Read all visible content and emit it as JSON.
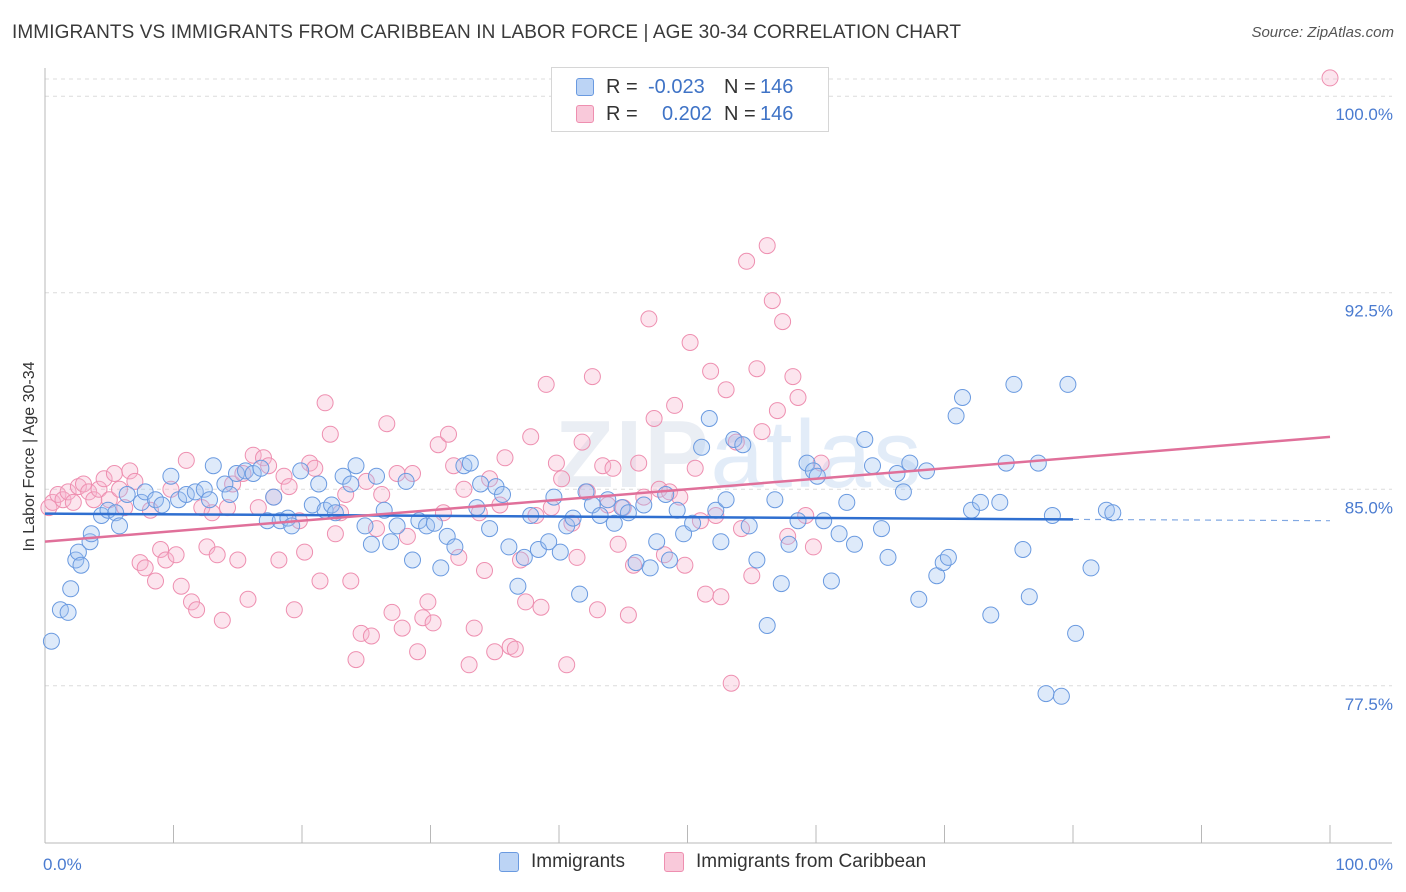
{
  "title": "IMMIGRANTS VS IMMIGRANTS FROM CARIBBEAN IN LABOR FORCE | AGE 30-34 CORRELATION CHART",
  "source": "Source: ZipAtlas.com",
  "watermark": {
    "zip": "ZIP",
    "atlas": "atlas"
  },
  "legend": {
    "rows": [
      {
        "r_label": "R =",
        "r_value": "-0.023",
        "n_label": "N =",
        "n_value": "146"
      },
      {
        "r_label": "R =",
        "r_value": "0.202",
        "n_label": "N =",
        "n_value": "146"
      }
    ]
  },
  "chart_data": {
    "type": "scatter",
    "title": "IMMIGRANTS VS IMMIGRANTS FROM CARIBBEAN IN LABOR FORCE | AGE 30-34 CORRELATION CHART",
    "xlabel": "",
    "ylabel": "In Labor Force | Age 30-34",
    "xlim": [
      0,
      100
    ],
    "ylim": [
      71.5,
      101
    ],
    "x_tick_labels": [
      "0.0%",
      "100.0%"
    ],
    "y_ticks": [
      77.5,
      85.0,
      92.5,
      100.0
    ],
    "y_tick_labels": [
      "77.5%",
      "85.0%",
      "92.5%",
      "100.0%"
    ],
    "grid": true,
    "legend_position": "top-center",
    "colors": {
      "immigrants": "#6a9ae0",
      "caribbean": "#ee8fb0",
      "immigrants_line": "#2f6fd0",
      "caribbean_line": "#e0709a"
    },
    "series": [
      {
        "name": "Immigrants",
        "r": -0.023,
        "n": 146,
        "trend": {
          "x0": 0,
          "y0": 84.07,
          "x1": 80,
          "y1": 83.85,
          "dash_to": 100,
          "dash_y": 83.8
        },
        "points": [
          [
            0.5,
            79.2
          ],
          [
            1.2,
            80.4
          ],
          [
            1.8,
            80.3
          ],
          [
            2,
            81.2
          ],
          [
            2.4,
            82.3
          ],
          [
            2.6,
            82.6
          ],
          [
            2.8,
            82.1
          ],
          [
            3.5,
            83.0
          ],
          [
            3.6,
            83.3
          ],
          [
            4.4,
            84.0
          ],
          [
            4.9,
            84.2
          ],
          [
            5.5,
            84.1
          ],
          [
            5.8,
            83.6
          ],
          [
            6.4,
            84.8
          ],
          [
            7.5,
            84.5
          ],
          [
            7.8,
            84.9
          ],
          [
            8.6,
            84.6
          ],
          [
            9.1,
            84.4
          ],
          [
            9.8,
            85.5
          ],
          [
            10.4,
            84.6
          ],
          [
            11,
            84.8
          ],
          [
            11.7,
            84.9
          ],
          [
            12.4,
            85.0
          ],
          [
            12.8,
            84.6
          ],
          [
            13.1,
            85.9
          ],
          [
            14,
            85.2
          ],
          [
            14.4,
            84.8
          ],
          [
            14.9,
            85.6
          ],
          [
            15.6,
            85.7
          ],
          [
            16.2,
            85.6
          ],
          [
            16.8,
            85.8
          ],
          [
            17.3,
            83.8
          ],
          [
            17.8,
            84.7
          ],
          [
            18.3,
            83.8
          ],
          [
            18.9,
            83.9
          ],
          [
            19.2,
            83.6
          ],
          [
            19.9,
            85.7
          ],
          [
            20.8,
            84.4
          ],
          [
            21.3,
            85.2
          ],
          [
            21.8,
            84.2
          ],
          [
            22.3,
            84.4
          ],
          [
            22.6,
            84.1
          ],
          [
            23.2,
            85.5
          ],
          [
            23.8,
            85.2
          ],
          [
            24.2,
            85.9
          ],
          [
            24.9,
            83.6
          ],
          [
            25.4,
            82.9
          ],
          [
            25.8,
            85.5
          ],
          [
            26.4,
            84.2
          ],
          [
            26.9,
            83.0
          ],
          [
            27.4,
            83.6
          ],
          [
            28.1,
            85.3
          ],
          [
            28.6,
            82.3
          ],
          [
            29.1,
            83.8
          ],
          [
            29.7,
            83.6
          ],
          [
            30.3,
            83.7
          ],
          [
            30.8,
            82.0
          ],
          [
            31.3,
            83.2
          ],
          [
            31.9,
            82.8
          ],
          [
            32.6,
            85.9
          ],
          [
            33.1,
            86.0
          ],
          [
            33.6,
            84.3
          ],
          [
            33.9,
            85.2
          ],
          [
            34.6,
            83.5
          ],
          [
            35.1,
            85.1
          ],
          [
            35.6,
            84.8
          ],
          [
            36.1,
            82.8
          ],
          [
            36.8,
            81.3
          ],
          [
            37.3,
            82.4
          ],
          [
            37.8,
            84.0
          ],
          [
            38.4,
            82.7
          ],
          [
            39.2,
            83.0
          ],
          [
            39.6,
            84.7
          ],
          [
            40.1,
            82.6
          ],
          [
            40.6,
            83.6
          ],
          [
            41.1,
            83.9
          ],
          [
            41.6,
            81.0
          ],
          [
            42.1,
            84.9
          ],
          [
            42.6,
            84.4
          ],
          [
            43.2,
            84.0
          ],
          [
            43.8,
            84.6
          ],
          [
            44.3,
            83.7
          ],
          [
            44.9,
            84.3
          ],
          [
            45.4,
            84.1
          ],
          [
            46.0,
            82.2
          ],
          [
            46.6,
            84.4
          ],
          [
            47.1,
            82.0
          ],
          [
            47.6,
            83.0
          ],
          [
            48.3,
            84.8
          ],
          [
            48.6,
            82.3
          ],
          [
            49.2,
            84.2
          ],
          [
            49.7,
            83.3
          ],
          [
            50.4,
            83.7
          ],
          [
            51.1,
            86.6
          ],
          [
            51.7,
            87.7
          ],
          [
            52.2,
            84.2
          ],
          [
            52.6,
            83.0
          ],
          [
            53.0,
            84.6
          ],
          [
            53.6,
            86.9
          ],
          [
            54.3,
            86.7
          ],
          [
            54.8,
            83.6
          ],
          [
            55.4,
            82.3
          ],
          [
            56.2,
            79.8
          ],
          [
            56.8,
            84.6
          ],
          [
            57.3,
            81.4
          ],
          [
            57.9,
            82.9
          ],
          [
            58.6,
            83.8
          ],
          [
            59.3,
            86.0
          ],
          [
            59.8,
            85.7
          ],
          [
            60.1,
            85.5
          ],
          [
            60.6,
            83.8
          ],
          [
            61.2,
            81.5
          ],
          [
            61.8,
            83.3
          ],
          [
            62.4,
            84.5
          ],
          [
            63.0,
            82.9
          ],
          [
            63.8,
            86.9
          ],
          [
            64.4,
            85.9
          ],
          [
            65.1,
            83.5
          ],
          [
            65.6,
            82.4
          ],
          [
            66.3,
            85.6
          ],
          [
            66.8,
            84.9
          ],
          [
            67.3,
            86.0
          ],
          [
            68.0,
            80.8
          ],
          [
            68.6,
            85.7
          ],
          [
            69.4,
            81.7
          ],
          [
            69.9,
            82.2
          ],
          [
            70.3,
            82.4
          ],
          [
            70.9,
            87.8
          ],
          [
            71.4,
            88.5
          ],
          [
            72.1,
            84.2
          ],
          [
            72.8,
            84.5
          ],
          [
            73.6,
            80.2
          ],
          [
            74.3,
            84.5
          ],
          [
            74.8,
            86.0
          ],
          [
            75.4,
            89.0
          ],
          [
            76.1,
            82.7
          ],
          [
            76.6,
            80.9
          ],
          [
            77.3,
            86.0
          ],
          [
            77.9,
            77.2
          ],
          [
            78.4,
            84.0
          ],
          [
            79.1,
            77.1
          ],
          [
            79.6,
            89.0
          ],
          [
            80.2,
            79.5
          ],
          [
            81.4,
            82.0
          ],
          [
            82.6,
            84.2
          ],
          [
            83.1,
            84.1
          ]
        ]
      },
      {
        "name": "Immigrants from Caribbean",
        "r": 0.202,
        "n": 146,
        "trend": {
          "x0": 0,
          "y0": 83.0,
          "x1": 100,
          "y1": 87.0
        },
        "points": [
          [
            0.3,
            84.3
          ],
          [
            0.6,
            84.5
          ],
          [
            1.0,
            84.8
          ],
          [
            1.4,
            84.6
          ],
          [
            1.8,
            84.9
          ],
          [
            2.2,
            84.5
          ],
          [
            2.6,
            85.1
          ],
          [
            3.0,
            85.2
          ],
          [
            3.4,
            84.9
          ],
          [
            3.8,
            84.6
          ],
          [
            4.2,
            85.0
          ],
          [
            4.6,
            85.4
          ],
          [
            5.0,
            84.6
          ],
          [
            5.4,
            85.6
          ],
          [
            5.8,
            85.0
          ],
          [
            6.2,
            84.3
          ],
          [
            6.6,
            85.7
          ],
          [
            7.0,
            85.3
          ],
          [
            7.4,
            82.2
          ],
          [
            7.8,
            82.0
          ],
          [
            8.2,
            84.2
          ],
          [
            8.6,
            81.5
          ],
          [
            9.0,
            82.7
          ],
          [
            9.4,
            82.3
          ],
          [
            9.8,
            85.0
          ],
          [
            10.2,
            82.5
          ],
          [
            10.6,
            81.3
          ],
          [
            11.0,
            86.1
          ],
          [
            11.4,
            80.7
          ],
          [
            11.8,
            80.4
          ],
          [
            12.2,
            84.3
          ],
          [
            12.6,
            82.8
          ],
          [
            13.0,
            84.1
          ],
          [
            13.4,
            82.5
          ],
          [
            13.8,
            80.0
          ],
          [
            14.2,
            84.3
          ],
          [
            14.6,
            85.2
          ],
          [
            15.0,
            82.3
          ],
          [
            15.4,
            85.6
          ],
          [
            15.8,
            80.8
          ],
          [
            16.2,
            86.3
          ],
          [
            16.6,
            84.3
          ],
          [
            17.0,
            86.2
          ],
          [
            17.4,
            85.9
          ],
          [
            17.8,
            84.7
          ],
          [
            18.2,
            82.3
          ],
          [
            18.6,
            85.5
          ],
          [
            19.0,
            85.1
          ],
          [
            19.4,
            80.4
          ],
          [
            19.8,
            83.8
          ],
          [
            20.2,
            82.6
          ],
          [
            20.6,
            86.0
          ],
          [
            21.0,
            85.8
          ],
          [
            21.4,
            81.5
          ],
          [
            21.8,
            88.3
          ],
          [
            22.2,
            87.1
          ],
          [
            22.6,
            83.3
          ],
          [
            23.0,
            84.1
          ],
          [
            23.4,
            84.8
          ],
          [
            23.8,
            81.5
          ],
          [
            24.2,
            78.5
          ],
          [
            24.6,
            79.5
          ],
          [
            25.0,
            85.3
          ],
          [
            25.4,
            79.4
          ],
          [
            25.8,
            83.5
          ],
          [
            26.2,
            84.8
          ],
          [
            26.6,
            87.5
          ],
          [
            27.0,
            80.3
          ],
          [
            27.4,
            85.6
          ],
          [
            27.8,
            79.7
          ],
          [
            28.2,
            83.2
          ],
          [
            28.6,
            85.6
          ],
          [
            29.0,
            78.8
          ],
          [
            29.4,
            80.1
          ],
          [
            29.8,
            80.7
          ],
          [
            30.2,
            79.9
          ],
          [
            30.6,
            86.7
          ],
          [
            31.0,
            84.1
          ],
          [
            31.4,
            87.1
          ],
          [
            31.8,
            85.9
          ],
          [
            32.2,
            82.4
          ],
          [
            32.6,
            85.0
          ],
          [
            33.0,
            78.3
          ],
          [
            33.4,
            79.7
          ],
          [
            33.8,
            84.1
          ],
          [
            34.2,
            81.9
          ],
          [
            34.6,
            85.4
          ],
          [
            35.0,
            78.8
          ],
          [
            35.4,
            84.4
          ],
          [
            35.8,
            86.2
          ],
          [
            36.2,
            79.0
          ],
          [
            36.6,
            78.9
          ],
          [
            37.0,
            82.3
          ],
          [
            37.4,
            80.7
          ],
          [
            37.8,
            87.0
          ],
          [
            38.2,
            84.0
          ],
          [
            38.6,
            80.5
          ],
          [
            39.0,
            89.0
          ],
          [
            39.4,
            84.3
          ],
          [
            39.8,
            86.0
          ],
          [
            40.2,
            85.4
          ],
          [
            40.6,
            78.3
          ],
          [
            41.0,
            83.7
          ],
          [
            41.4,
            82.4
          ],
          [
            41.8,
            86.8
          ],
          [
            42.2,
            84.9
          ],
          [
            42.6,
            89.3
          ],
          [
            43.0,
            80.4
          ],
          [
            43.4,
            85.9
          ],
          [
            43.8,
            84.4
          ],
          [
            44.2,
            85.8
          ],
          [
            44.6,
            82.9
          ],
          [
            45.0,
            84.3
          ],
          [
            45.4,
            80.2
          ],
          [
            45.8,
            82.1
          ],
          [
            46.2,
            86.0
          ],
          [
            46.6,
            84.7
          ],
          [
            47.0,
            91.5
          ],
          [
            47.4,
            87.7
          ],
          [
            47.8,
            85.0
          ],
          [
            48.2,
            82.5
          ],
          [
            48.6,
            84.9
          ],
          [
            49.0,
            88.2
          ],
          [
            49.4,
            84.7
          ],
          [
            49.8,
            82.1
          ],
          [
            50.2,
            90.6
          ],
          [
            50.6,
            85.8
          ],
          [
            51.0,
            83.8
          ],
          [
            51.4,
            81.0
          ],
          [
            51.8,
            89.5
          ],
          [
            52.2,
            84.0
          ],
          [
            52.6,
            80.9
          ],
          [
            53.0,
            88.8
          ],
          [
            53.4,
            77.6
          ],
          [
            53.8,
            86.8
          ],
          [
            54.2,
            83.5
          ],
          [
            54.6,
            93.7
          ],
          [
            55.0,
            81.7
          ],
          [
            55.4,
            89.6
          ],
          [
            55.8,
            87.2
          ],
          [
            56.2,
            94.3
          ],
          [
            56.6,
            92.2
          ],
          [
            57.0,
            88.0
          ],
          [
            57.4,
            91.4
          ],
          [
            57.8,
            83.2
          ],
          [
            58.2,
            89.3
          ],
          [
            58.6,
            88.5
          ],
          [
            59.2,
            84.0
          ],
          [
            59.8,
            82.8
          ],
          [
            60.4,
            86.0
          ],
          [
            100.0,
            100.7
          ]
        ]
      }
    ]
  },
  "bottom_legend": [
    {
      "label": "Immigrants"
    },
    {
      "label": "Immigrants from Caribbean"
    }
  ]
}
